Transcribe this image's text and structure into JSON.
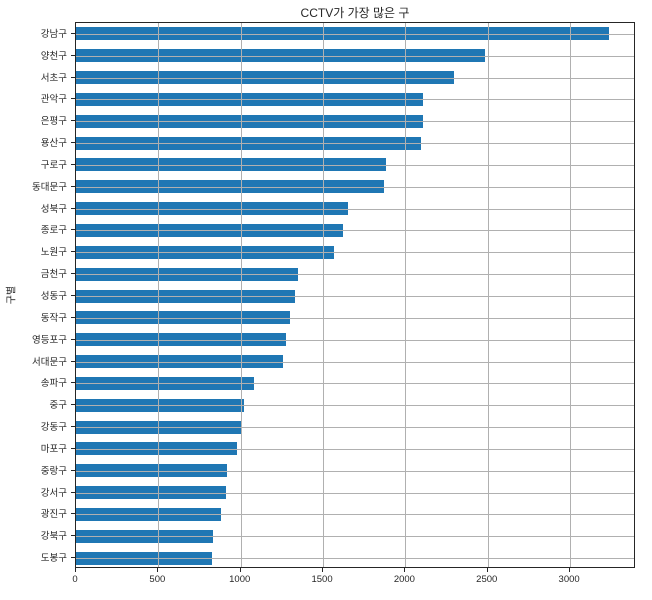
{
  "chart_data": {
    "type": "bar",
    "orientation": "horizontal",
    "title": "CCTV가 가장 많은 구",
    "xlabel": "",
    "ylabel": "구별",
    "categories": [
      "강남구",
      "양천구",
      "서초구",
      "관악구",
      "은평구",
      "용산구",
      "구로구",
      "동대문구",
      "성북구",
      "종로구",
      "노원구",
      "금천구",
      "성동구",
      "동작구",
      "영등포구",
      "서대문구",
      "송파구",
      "중구",
      "강동구",
      "마포구",
      "중랑구",
      "강서구",
      "광진구",
      "강북구",
      "도봉구"
    ],
    "values": [
      3238,
      2482,
      2297,
      2109,
      2108,
      2096,
      1884,
      1870,
      1651,
      1619,
      1566,
      1348,
      1327,
      1302,
      1277,
      1254,
      1081,
      1023,
      1010,
      980,
      916,
      911,
      878,
      831,
      825
    ],
    "xticks": [
      0,
      500,
      1000,
      1500,
      2000,
      2500,
      3000
    ],
    "xlim": [
      0,
      3400
    ],
    "grid": true,
    "legend": false,
    "bar_color": "#1f77b4",
    "grid_color": "#b0b0b0",
    "spine_color": "#262626",
    "text_color": "#262626",
    "background": "#ffffff"
  }
}
